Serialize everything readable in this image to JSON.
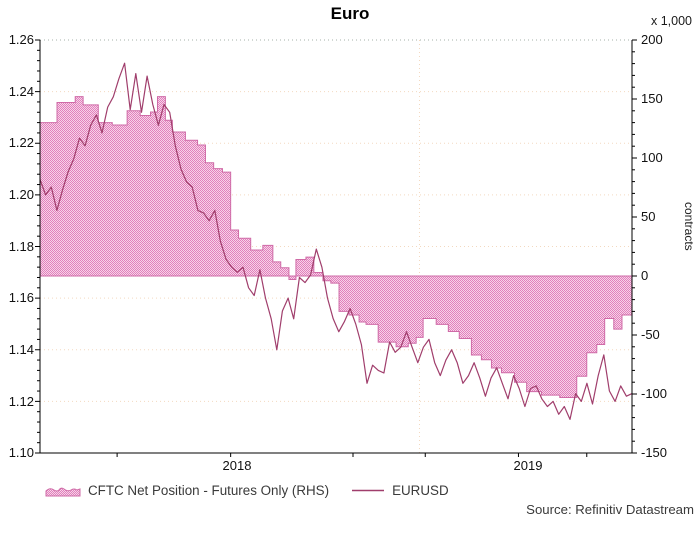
{
  "title": "Euro",
  "right_axis_unit": "x 1,000",
  "right_axis_side_label": "contracts",
  "source": "Source: Refinitiv Datastream",
  "legend": {
    "area_series_label": "CFTC Net Position - Futures Only (RHS)",
    "line_series_label": "EURUSD"
  },
  "colors": {
    "area_fill_base": "#f6d4e8",
    "area_fill_dot": "#e27fbc",
    "area_outline": "#cf6ba7",
    "line": "#a03e6c",
    "gridline": "#f3d9c0",
    "top_border": "#a6b2aa",
    "axis": "#000000"
  },
  "chart_data": {
    "type": "combo",
    "title": "Euro",
    "x_axis": {
      "min": 2017.75,
      "max": 2019.7,
      "tick_years": [
        2018.004,
        2018.378,
        2018.781,
        2019.019,
        2019.326,
        2019.551
      ],
      "labels": [
        {
          "text": "2018",
          "year": 2018.4
        },
        {
          "text": "2019",
          "year": 2019.36
        }
      ],
      "gridline_years": [
        2019.0
      ]
    },
    "left_axis": {
      "min": 1.1,
      "max": 1.26,
      "major_step": 0.02,
      "minor_step": 0.004,
      "tick_labels": [
        "1.26",
        "1.24",
        "1.22",
        "1.20",
        "1.18",
        "1.16",
        "1.14",
        "1.12",
        "1.10"
      ],
      "gridline_values": [
        1.24,
        1.22,
        1.2,
        1.18,
        1.16,
        1.14,
        1.12
      ]
    },
    "right_axis": {
      "unit": "x 1,000",
      "label": "contracts",
      "min": -150,
      "max": 200,
      "major_step": 50,
      "minor_step": 10,
      "tick_labels": [
        "200",
        "150",
        "100",
        "50",
        "0",
        "-50",
        "-100",
        "-150"
      ]
    },
    "series": [
      {
        "name": "CFTC Net Position - Futures Only (RHS)",
        "type": "step-area",
        "axis": "right",
        "units": "thousand contracts",
        "points": [
          [
            2017.75,
            130
          ],
          [
            2017.806,
            147
          ],
          [
            2017.866,
            152
          ],
          [
            2017.892,
            145
          ],
          [
            2017.942,
            130
          ],
          [
            2017.988,
            128
          ],
          [
            2018.037,
            140
          ],
          [
            2018.08,
            136
          ],
          [
            2018.114,
            139
          ],
          [
            2018.137,
            152
          ],
          [
            2018.163,
            132
          ],
          [
            2018.186,
            122
          ],
          [
            2018.229,
            115
          ],
          [
            2018.269,
            111
          ],
          [
            2018.295,
            96
          ],
          [
            2018.322,
            91
          ],
          [
            2018.351,
            88
          ],
          [
            2018.378,
            39
          ],
          [
            2018.404,
            32
          ],
          [
            2018.444,
            22
          ],
          [
            2018.484,
            26
          ],
          [
            2018.517,
            12
          ],
          [
            2018.543,
            7
          ],
          [
            2018.57,
            -3
          ],
          [
            2018.593,
            14
          ],
          [
            2018.626,
            16
          ],
          [
            2018.652,
            3
          ],
          [
            2018.682,
            -4
          ],
          [
            2018.708,
            -6
          ],
          [
            2018.735,
            -30
          ],
          [
            2018.768,
            -33
          ],
          [
            2018.801,
            -39
          ],
          [
            2018.824,
            -41
          ],
          [
            2018.864,
            -56
          ],
          [
            2018.923,
            -60
          ],
          [
            2018.963,
            -57
          ],
          [
            2018.989,
            -52
          ],
          [
            2019.012,
            -36
          ],
          [
            2019.055,
            -41
          ],
          [
            2019.095,
            -47
          ],
          [
            2019.131,
            -53
          ],
          [
            2019.171,
            -67
          ],
          [
            2019.204,
            -71
          ],
          [
            2019.237,
            -78
          ],
          [
            2019.27,
            -82
          ],
          [
            2019.313,
            -90
          ],
          [
            2019.353,
            -98
          ],
          [
            2019.402,
            -101
          ],
          [
            2019.462,
            -103
          ],
          [
            2019.518,
            -85
          ],
          [
            2019.551,
            -65
          ],
          [
            2019.584,
            -58
          ],
          [
            2019.61,
            -36
          ],
          [
            2019.64,
            -45
          ],
          [
            2019.667,
            -33
          ],
          [
            2019.7,
            -34
          ]
        ]
      },
      {
        "name": "EURUSD",
        "type": "line",
        "axis": "left",
        "x_start": 2017.75,
        "x_step": 0.0185714,
        "values": [
          1.206,
          1.2,
          1.203,
          1.194,
          1.202,
          1.209,
          1.214,
          1.222,
          1.219,
          1.227,
          1.231,
          1.224,
          1.234,
          1.238,
          1.245,
          1.251,
          1.233,
          1.247,
          1.232,
          1.246,
          1.235,
          1.227,
          1.235,
          1.232,
          1.219,
          1.21,
          1.205,
          1.203,
          1.194,
          1.193,
          1.19,
          1.194,
          1.182,
          1.175,
          1.172,
          1.17,
          1.172,
          1.164,
          1.161,
          1.171,
          1.16,
          1.152,
          1.14,
          1.155,
          1.16,
          1.152,
          1.168,
          1.166,
          1.169,
          1.179,
          1.172,
          1.16,
          1.152,
          1.147,
          1.151,
          1.156,
          1.15,
          1.142,
          1.127,
          1.134,
          1.132,
          1.131,
          1.143,
          1.139,
          1.141,
          1.147,
          1.141,
          1.135,
          1.141,
          1.144,
          1.135,
          1.13,
          1.136,
          1.14,
          1.135,
          1.127,
          1.13,
          1.135,
          1.129,
          1.122,
          1.129,
          1.133,
          1.127,
          1.121,
          1.13,
          1.125,
          1.118,
          1.125,
          1.126,
          1.121,
          1.118,
          1.12,
          1.115,
          1.118,
          1.113,
          1.123,
          1.12,
          1.127,
          1.119,
          1.13,
          1.138,
          1.124,
          1.12,
          1.126,
          1.122,
          1.123
        ]
      }
    ]
  }
}
